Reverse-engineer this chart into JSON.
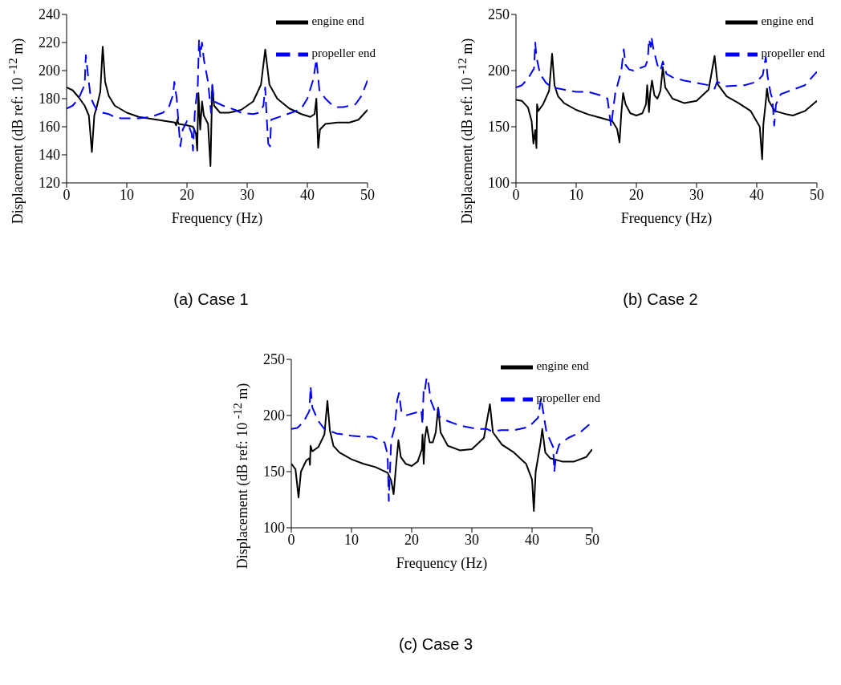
{
  "chart_data": [
    {
      "type": "line",
      "title": "(a) Case 1",
      "xlabel": "Frequency (Hz)",
      "ylabel": "Displacement (dB ref: 10 $^{-12}$ m)",
      "xlim": [
        0,
        50
      ],
      "xticks": [
        0,
        10,
        20,
        30,
        40,
        50
      ],
      "ylim": [
        120,
        240
      ],
      "yticks": [
        120,
        140,
        160,
        180,
        200,
        220,
        240
      ],
      "legend": "top right",
      "marker": "none",
      "series": [
        {
          "name": "engine end",
          "color": "#000000",
          "line_style": "solid",
          "x": [
            0,
            1,
            2,
            3,
            3.7,
            4.2,
            4.6,
            5,
            5.6,
            6,
            6.4,
            7,
            8,
            10,
            12,
            15,
            18,
            18.2,
            18.4,
            18.6,
            20,
            21,
            21.5,
            21.7,
            21.9,
            22.2,
            22.5,
            22.8,
            23.5,
            23.9,
            24.2,
            24.5,
            25.5,
            27,
            29,
            31,
            32.3,
            33,
            33.7,
            35,
            37,
            39,
            40.5,
            41.2,
            41.5,
            41.8,
            42.1,
            43,
            45,
            47,
            48.5,
            50
          ],
          "values": [
            188,
            186,
            181,
            175,
            168,
            142,
            168,
            174,
            185,
            217,
            192,
            182,
            175,
            170,
            167,
            165,
            163,
            161,
            165,
            162,
            161,
            160,
            155,
            143,
            184,
            158,
            178,
            168,
            162,
            132,
            189,
            175,
            170,
            170,
            172,
            178,
            190,
            215,
            190,
            180,
            173,
            169,
            167,
            169,
            180,
            145,
            158,
            162,
            163,
            163,
            165,
            172
          ]
        },
        {
          "name": "propeller end",
          "color": "#0000ff",
          "line_style": "dashed",
          "x": [
            0,
            1,
            2,
            3,
            3.2,
            3.6,
            4,
            4.5,
            5,
            6,
            7,
            8,
            9,
            10,
            12,
            14,
            16,
            17,
            17.7,
            17.9,
            18.3,
            18.6,
            18.9,
            19.3,
            20,
            20.8,
            21,
            21.3,
            21.8,
            22,
            22.2,
            22.5,
            22.8,
            23.5,
            24,
            24.2,
            24.5,
            26,
            28,
            29,
            31,
            32,
            32.7,
            33,
            33.2,
            33.5,
            33.8,
            34,
            36,
            38,
            39,
            40,
            41,
            41.5,
            41.8,
            42,
            43,
            44,
            45,
            46,
            47,
            48,
            49,
            50
          ],
          "values": [
            173,
            175,
            180,
            190,
            211,
            195,
            181,
            176,
            172,
            170,
            169,
            167,
            166,
            166,
            166,
            167,
            170,
            174,
            183,
            192,
            180,
            162,
            146,
            158,
            164,
            155,
            143,
            170,
            190,
            222,
            210,
            220,
            208,
            192,
            170,
            190,
            178,
            175,
            172,
            170,
            169,
            170,
            175,
            188,
            170,
            148,
            146,
            165,
            168,
            171,
            173,
            180,
            194,
            208,
            195,
            186,
            180,
            176,
            174,
            174,
            175,
            176,
            182,
            193
          ]
        }
      ]
    },
    {
      "type": "line",
      "title": "(b) Case 2",
      "xlabel": "Frequency (Hz)",
      "ylabel": "Displacement (dB ref: 10 $^{-12}$ m)",
      "xlim": [
        0,
        50
      ],
      "xticks": [
        0,
        10,
        20,
        30,
        40,
        50
      ],
      "ylim": [
        100,
        250
      ],
      "yticks": [
        100,
        150,
        200,
        250
      ],
      "legend": "top right",
      "marker": "none",
      "series": [
        {
          "name": "engine end",
          "color": "#000000",
          "line_style": "solid",
          "x": [
            0,
            1,
            2,
            2.6,
            2.9,
            3.2,
            3.4,
            3.5,
            3.7,
            4.5,
            5.5,
            6,
            6.4,
            7,
            8,
            10,
            12,
            14,
            16,
            16.8,
            17.2,
            17.5,
            17.8,
            18.2,
            19,
            20,
            21,
            21.6,
            21.8,
            22.1,
            22.3,
            22.6,
            23,
            23.5,
            24,
            24.4,
            24.8,
            26,
            28,
            30,
            32,
            33,
            33.5,
            35,
            37,
            39,
            40.5,
            40.9,
            41.1,
            41.5,
            41.7,
            42,
            43,
            45,
            46,
            48,
            50
          ],
          "values": [
            174,
            173,
            167,
            155,
            135,
            147,
            131,
            170,
            164,
            170,
            182,
            215,
            187,
            177,
            171,
            165,
            161,
            158,
            155,
            148,
            136,
            162,
            180,
            170,
            162,
            160,
            162,
            170,
            187,
            163,
            180,
            191,
            178,
            175,
            182,
            203,
            185,
            175,
            171,
            173,
            183,
            213,
            188,
            177,
            171,
            164,
            150,
            121,
            152,
            172,
            184,
            173,
            164,
            161,
            160,
            164,
            173
          ]
        },
        {
          "name": "propeller end",
          "color": "#0000ff",
          "line_style": "dashed",
          "x": [
            0,
            1,
            2,
            3,
            3.2,
            3.4,
            4,
            5,
            6,
            8,
            10,
            12,
            14,
            15.2,
            15.8,
            16.2,
            16.5,
            17.5,
            17.9,
            18.2,
            18.8,
            19.5,
            21.5,
            21.9,
            22.1,
            22.4,
            22.5,
            22.8,
            23.5,
            24,
            24.4,
            25,
            26,
            28,
            30,
            32,
            33,
            33.4,
            35,
            38,
            40,
            41,
            41.5,
            41.8,
            42.3,
            42.6,
            42.9,
            43.2,
            44,
            46,
            48,
            50
          ],
          "values": [
            185,
            187,
            193,
            202,
            225,
            212,
            197,
            189,
            185,
            183,
            181,
            181,
            178,
            175,
            150,
            168,
            180,
            200,
            219,
            205,
            201,
            200,
            204,
            210,
            228,
            221,
            230,
            220,
            205,
            200,
            208,
            197,
            194,
            191,
            189,
            187,
            184,
            190,
            186,
            187,
            190,
            196,
            212,
            195,
            180,
            175,
            151,
            170,
            179,
            183,
            187,
            199
          ]
        }
      ]
    },
    {
      "type": "line",
      "title": "(c) Case 3",
      "xlabel": "Frequency (Hz)",
      "ylabel": "Displacement (dB ref: 10 $^{-12}$ m)",
      "xlim": [
        0,
        50
      ],
      "xticks": [
        0,
        10,
        20,
        30,
        40,
        50
      ],
      "ylim": [
        100,
        250
      ],
      "yticks": [
        100,
        150,
        200,
        250
      ],
      "legend": "top right",
      "marker": "none",
      "series": [
        {
          "name": "engine end",
          "color": "#000000",
          "line_style": "solid",
          "x": [
            0,
            0.7,
            1.2,
            1.6,
            2.5,
            3,
            3.1,
            3.2,
            3.5,
            4.5,
            5.5,
            6,
            6.4,
            7,
            8,
            10,
            12,
            14,
            16,
            16.6,
            17,
            17.4,
            17.8,
            18.2,
            19,
            20,
            21,
            21.7,
            21.8,
            22,
            22.2,
            22.5,
            23,
            23.5,
            24,
            24.4,
            24.8,
            26,
            28,
            30,
            32,
            33,
            33.5,
            35,
            37,
            39,
            40,
            40.3,
            40.6,
            41.4,
            41.7,
            42.2,
            43,
            45,
            47,
            49,
            50
          ],
          "values": [
            157,
            152,
            127,
            150,
            160,
            162,
            156,
            173,
            168,
            172,
            183,
            213,
            187,
            173,
            167,
            161,
            157,
            154,
            149,
            142,
            130,
            155,
            178,
            163,
            157,
            155,
            159,
            170,
            183,
            157,
            180,
            190,
            176,
            176,
            185,
            207,
            185,
            173,
            169,
            170,
            180,
            210,
            185,
            174,
            167,
            157,
            143,
            115,
            150,
            175,
            188,
            167,
            162,
            159,
            159,
            163,
            170
          ]
        },
        {
          "name": "propeller end",
          "color": "#0000ff",
          "line_style": "dashed",
          "x": [
            0,
            1,
            2,
            3,
            3.2,
            3.5,
            4.5,
            5.5,
            7.5,
            10,
            12,
            13.5,
            15.5,
            16,
            16.2,
            16.6,
            17.2,
            17.6,
            17.9,
            18.3,
            19,
            21,
            21.6,
            21.8,
            22,
            22.2,
            22.5,
            22.8,
            23.2,
            24,
            24.4,
            24.6,
            26,
            28,
            30,
            31.5,
            32.5,
            33.3,
            35,
            37,
            38,
            39.5,
            41,
            41.5,
            41.8,
            42.4,
            43.5,
            43.7,
            44,
            44.5,
            46,
            48,
            49.5
          ],
          "values": [
            188,
            189,
            194,
            204,
            226,
            207,
            195,
            188,
            184,
            182,
            181,
            181,
            176,
            165,
            124,
            178,
            190,
            214,
            220,
            203,
            200,
            203,
            205,
            192,
            225,
            223,
            234,
            228,
            213,
            202,
            206,
            199,
            195,
            191,
            189,
            188,
            188,
            186,
            187,
            187,
            188,
            190,
            198,
            216,
            205,
            185,
            172,
            150,
            165,
            174,
            180,
            185,
            192
          ]
        }
      ]
    }
  ]
}
